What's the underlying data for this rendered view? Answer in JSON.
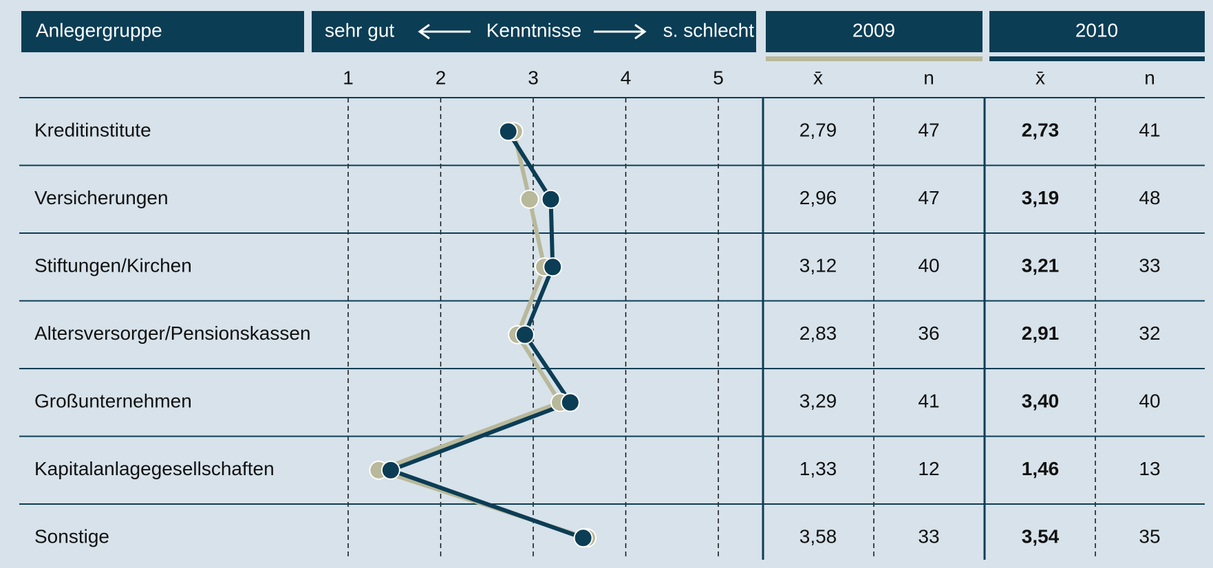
{
  "chart_data": {
    "type": "line",
    "category_header": "Anlegergruppe",
    "scale_header": {
      "left": "sehr gut",
      "center": "Kenntnisse",
      "right": "s. schlecht"
    },
    "columns": [
      "x̄",
      "n"
    ],
    "categories": [
      "Kreditinstitute",
      "Versicherungen",
      "Stiftungen/Kirchen",
      "Altersversorger/Pensionskassen",
      "Großunternehmen",
      "Kapitalanlagegesellschaften",
      "Sonstige"
    ],
    "xlim": [
      1,
      5
    ],
    "xticks": [
      1,
      2,
      3,
      4,
      5
    ],
    "series": [
      {
        "name": "2009",
        "color": "#b8b89a",
        "values": [
          2.79,
          2.96,
          3.12,
          2.83,
          3.29,
          1.33,
          3.58
        ],
        "value_labels": [
          "2,79",
          "2,96",
          "3,12",
          "2,83",
          "3,29",
          "1,33",
          "3,58"
        ],
        "n": [
          47,
          47,
          40,
          36,
          41,
          12,
          33
        ]
      },
      {
        "name": "2010",
        "color": "#0b3d55",
        "values": [
          2.73,
          3.19,
          3.21,
          2.91,
          3.4,
          1.46,
          3.54
        ],
        "value_labels": [
          "2,73",
          "3,19",
          "3,21",
          "2,91",
          "3,40",
          "1,46",
          "3,54"
        ],
        "n": [
          41,
          48,
          33,
          32,
          40,
          13,
          35
        ]
      }
    ]
  }
}
